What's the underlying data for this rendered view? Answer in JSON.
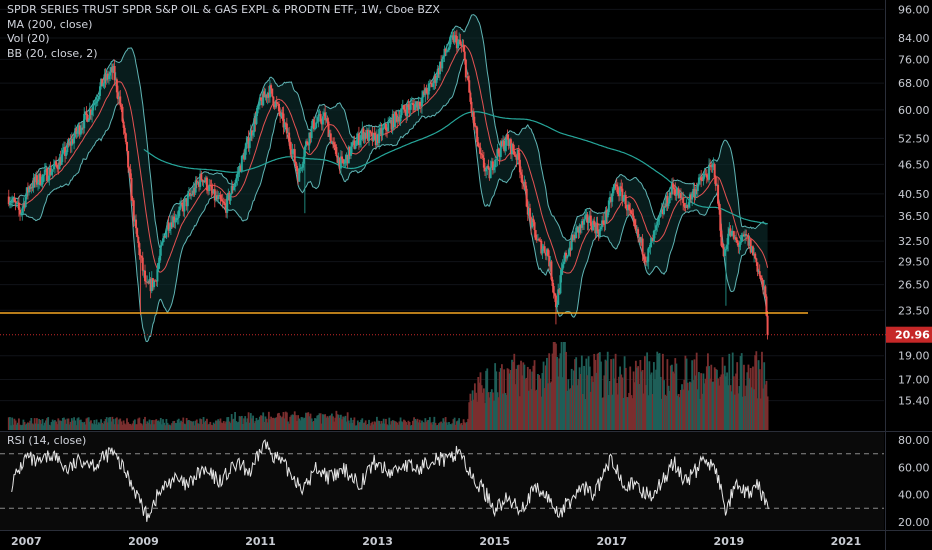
{
  "legend": {
    "title": "SPDR SERIES TRUST SPDR S&P OIL & GAS EXPL & PRODTN ETF, 1W, Cboe BZX",
    "ma": "MA (200, close)",
    "vol": "Vol (20)",
    "bb": "BB (20, close, 2)"
  },
  "rsi_legend": "RSI (14, close)",
  "colors": {
    "background": "#000000",
    "up": "#26a69a",
    "down": "#ef5350",
    "ma": "#26a69a",
    "bb": "#5fb4b4",
    "basis": "#e45252",
    "support": "#f5a623",
    "last_price": "#c62828",
    "rsi": "#e6e6e6"
  },
  "chart_data": [
    {
      "type": "candlestick",
      "title": "SPDR SERIES TRUST SPDR S&P OIL & GAS EXPL & PRODTN ETF, 1W, Cboe BZX",
      "scale": "log",
      "y_ticks": [
        "96.00",
        "84.00",
        "76.00",
        "68.00",
        "60.00",
        "52.50",
        "46.50",
        "40.50",
        "36.50",
        "32.50",
        "29.50",
        "26.50",
        "23.50",
        "19.00",
        "17.00",
        "15.40"
      ],
      "x_ticks": [
        "2007",
        "2009",
        "2011",
        "2013",
        "2015",
        "2017",
        "2019",
        "2021"
      ],
      "x_range": [
        2006.55,
        2021.65
      ],
      "y_range": [
        14.6,
        98.0
      ],
      "last_price": 20.96,
      "last_price_label": "20.96",
      "support_level": 23.2,
      "ohlc_anchors": {
        "x": [
          2006.7,
          2006.9,
          2007.05,
          2007.3,
          2007.5,
          2007.7,
          2007.9,
          2008.1,
          2008.3,
          2008.48,
          2008.6,
          2008.72,
          2008.85,
          2008.95,
          2009.05,
          2009.2,
          2009.4,
          2009.6,
          2009.8,
          2010.0,
          2010.2,
          2010.4,
          2010.6,
          2010.8,
          2011.0,
          2011.15,
          2011.3,
          2011.5,
          2011.65,
          2011.75,
          2011.9,
          2012.1,
          2012.25,
          2012.4,
          2012.55,
          2012.75,
          2012.95,
          2013.2,
          2013.45,
          2013.7,
          2013.95,
          2014.15,
          2014.3,
          2014.45,
          2014.6,
          2014.75,
          2014.9,
          2015.0,
          2015.2,
          2015.4,
          2015.6,
          2015.75,
          2015.9,
          2016.05,
          2016.2,
          2016.4,
          2016.6,
          2016.8,
          2016.95,
          2017.05,
          2017.2,
          2017.4,
          2017.6,
          2017.75,
          2017.9,
          2018.05,
          2018.25,
          2018.45,
          2018.6,
          2018.75,
          2018.9,
          2019.0,
          2019.15,
          2019.3,
          2019.45,
          2019.55,
          2019.62,
          2019.68
        ],
        "close": [
          40,
          37,
          42,
          44,
          46,
          50,
          55,
          60,
          68,
          72,
          62,
          48,
          35,
          30,
          26,
          27,
          35,
          37,
          40,
          44,
          40,
          38,
          44,
          52,
          62,
          66,
          60,
          52,
          44,
          50,
          56,
          58,
          50,
          46,
          50,
          54,
          52,
          56,
          60,
          62,
          68,
          78,
          84,
          80,
          60,
          48,
          44,
          48,
          52,
          48,
          36,
          32,
          31,
          24,
          30,
          34,
          36,
          34,
          38,
          42,
          40,
          34,
          30,
          34,
          38,
          42,
          38,
          42,
          44,
          46,
          30,
          34,
          32,
          33,
          30,
          27,
          25,
          21
        ],
        "low_spikes": {
          "2008.95": 23,
          "2011.75": 37,
          "2016.05": 22,
          "2018.95": 24
        }
      }
    },
    {
      "type": "bar",
      "name": "Vol (20)",
      "note_profile": "low 2006-2014, high 2015-2019"
    },
    {
      "type": "line",
      "name": "RSI (14, close)",
      "y_ticks": [
        "80.00",
        "60.00",
        "40.00",
        "20.00"
      ],
      "y_range": [
        17,
        83
      ],
      "bands": [
        70,
        30
      ],
      "anchors": {
        "x": [
          2006.75,
          2007.0,
          2007.2,
          2007.45,
          2007.7,
          2007.95,
          2008.2,
          2008.45,
          2008.7,
          2008.9,
          2009.05,
          2009.25,
          2009.5,
          2009.75,
          2010.0,
          2010.3,
          2010.6,
          2010.85,
          2011.05,
          2011.3,
          2011.55,
          2011.75,
          2011.95,
          2012.2,
          2012.45,
          2012.7,
          2012.95,
          2013.2,
          2013.45,
          2013.7,
          2013.95,
          2014.2,
          2014.4,
          2014.6,
          2014.8,
          2015.0,
          2015.2,
          2015.45,
          2015.7,
          2015.9,
          2016.1,
          2016.3,
          2016.5,
          2016.7,
          2016.9,
          2017.0,
          2017.2,
          2017.45,
          2017.65,
          2017.85,
          2018.05,
          2018.25,
          2018.45,
          2018.6,
          2018.8,
          2018.95,
          2019.1,
          2019.3,
          2019.5,
          2019.68
        ],
        "values": [
          48,
          68,
          62,
          70,
          58,
          66,
          62,
          72,
          56,
          40,
          24,
          40,
          52,
          46,
          58,
          50,
          62,
          56,
          78,
          66,
          54,
          44,
          60,
          52,
          58,
          48,
          64,
          56,
          62,
          58,
          68,
          64,
          74,
          52,
          44,
          30,
          36,
          30,
          44,
          38,
          26,
          36,
          46,
          40,
          58,
          66,
          50,
          44,
          40,
          48,
          64,
          50,
          58,
          68,
          54,
          28,
          46,
          40,
          46,
          30
        ]
      }
    }
  ]
}
